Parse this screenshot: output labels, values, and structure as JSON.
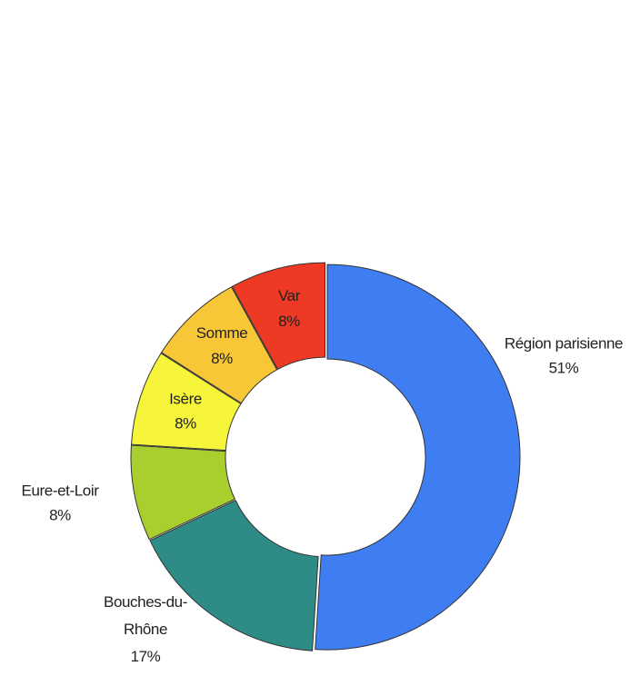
{
  "chart_data": {
    "type": "pie",
    "variant": "donut",
    "title": "",
    "legend": "none",
    "categories": [
      "Région parisienne",
      "Bouches-du-Rhône",
      "Eure-et-Loir",
      "Isère",
      "Somme",
      "Var"
    ],
    "values": [
      51,
      17,
      8,
      8,
      8,
      8
    ],
    "series": [
      {
        "name": "Région parisienne",
        "value": 51,
        "label": "51%",
        "color": "#3f7ef2"
      },
      {
        "name": "Bouches-du-Rhône",
        "value": 17,
        "label": "17%",
        "color": "#2e8b86"
      },
      {
        "name": "Eure-et-Loir",
        "value": 8,
        "label": "8%",
        "color": "#a8cf2e"
      },
      {
        "name": "Isère",
        "value": 8,
        "label": "8%",
        "color": "#f7f53a"
      },
      {
        "name": "Somme",
        "value": 8,
        "label": "8%",
        "color": "#f7c737"
      },
      {
        "name": "Var",
        "value": 8,
        "label": "8%",
        "color": "#ee3a24"
      }
    ]
  }
}
